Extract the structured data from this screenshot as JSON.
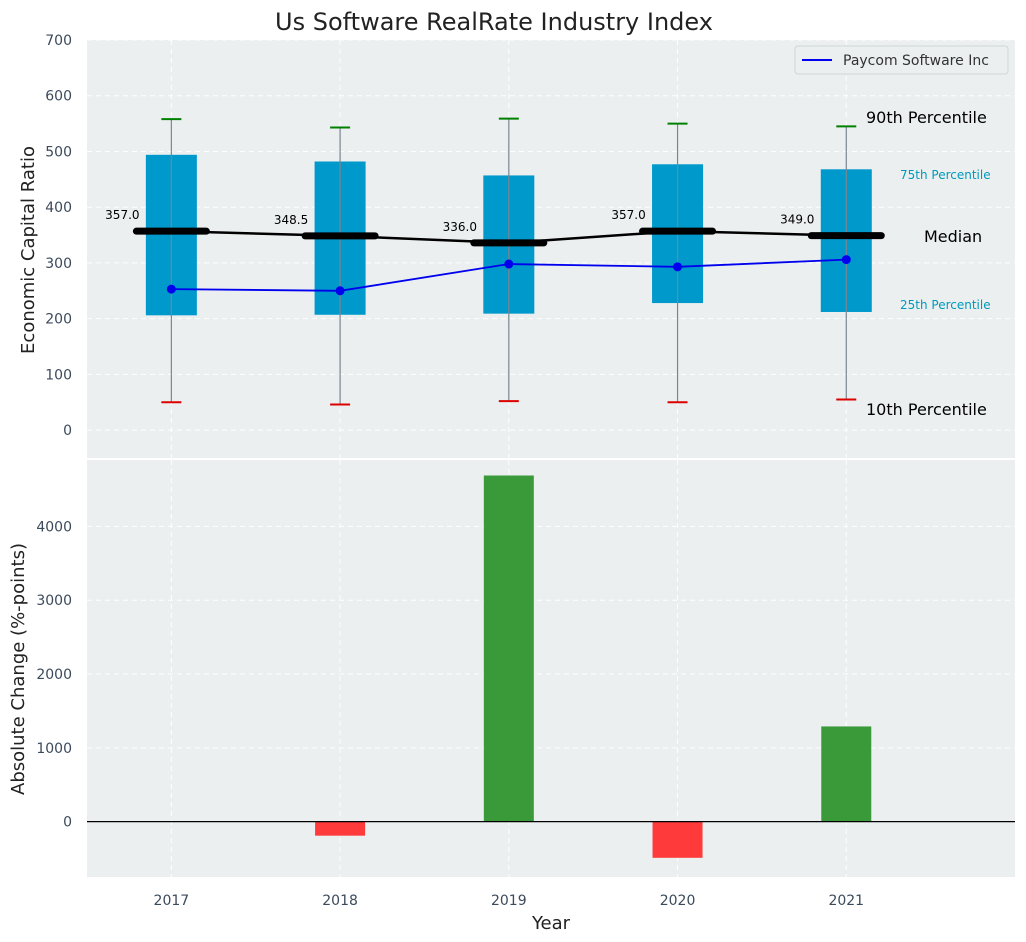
{
  "chart_data": [
    {
      "type": "box",
      "title": "Us Software RealRate Industry Index",
      "ylabel": "Economic Capital Ratio",
      "ylim": [
        -50,
        700
      ],
      "yticks": [
        "0",
        "100",
        "200",
        "300",
        "400",
        "500",
        "600",
        "700"
      ],
      "categories": [
        "2017",
        "2018",
        "2019",
        "2020",
        "2021"
      ],
      "p10": [
        50,
        46,
        52,
        50,
        55
      ],
      "p25": [
        206,
        207,
        209,
        228,
        212
      ],
      "median": [
        357.0,
        348.5,
        336.0,
        357.0,
        349.0
      ],
      "median_labels": [
        "357.0",
        "348.5",
        "336.0",
        "357.0",
        "349.0"
      ],
      "p75": [
        494,
        482,
        457,
        477,
        468
      ],
      "p90": [
        558,
        543,
        559,
        550,
        545
      ],
      "series": [
        {
          "name": "Paycom Software Inc",
          "values": [
            253,
            250,
            298,
            293,
            306
          ]
        }
      ],
      "annotations": {
        "p90": "90th Percentile",
        "p75": "75th Percentile",
        "median": "Median",
        "p25": "25th Percentile",
        "p10": "10th Percentile"
      },
      "legend_position": "top-right",
      "grid": true,
      "colors": {
        "box": "#0099cc",
        "median": "#000000",
        "series": "#0000ee",
        "p90_cap": "#008000",
        "p10_cap": "#dd0000",
        "annotation_small": "#0099bb",
        "background": "#ebeff0"
      }
    },
    {
      "type": "bar",
      "ylabel": "Absolute Change (%-points)",
      "xlabel": "Year",
      "ylim": [
        -750,
        4900
      ],
      "yticks": [
        "0",
        "1000",
        "2000",
        "3000",
        "4000"
      ],
      "categories": [
        "2017",
        "2018",
        "2019",
        "2020",
        "2021"
      ],
      "values": [
        0,
        -190,
        4690,
        -490,
        1290
      ],
      "grid": true,
      "colors": {
        "positive": "#3a9a3a",
        "negative": "#ff3a3a"
      }
    }
  ]
}
